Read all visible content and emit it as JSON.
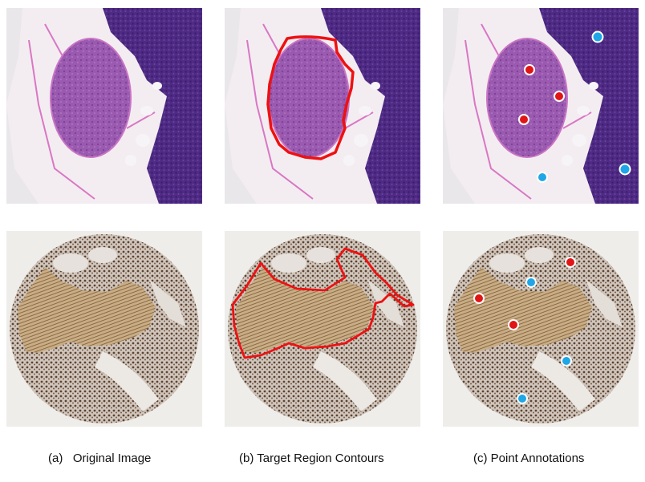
{
  "captions": {
    "a_prefix": "(a)",
    "a_label": "Original Image",
    "b": "(b) Target Region Contours",
    "c": "(c) Point Annotations"
  },
  "annotation_colors": {
    "contour": "#ee1111",
    "positive_point": "#e01616",
    "negative_point": "#1fa6e6",
    "point_outline": "#ffffff"
  },
  "tissue_colors": {
    "he_background": "#e9e7ea",
    "he_lymph": "#4f2b85",
    "he_follicle": "#9a5ab0",
    "he_fat": "#f3edf2",
    "he_septa": "#d977c4",
    "ihc_background": "#efedea",
    "ihc_core": "#d8d3cc",
    "ihc_fiber": "#a8875e",
    "ihc_nuclei": "#5e4230"
  },
  "rows": [
    {
      "name": "H&E lymph node",
      "panels": [
        "original",
        "contour",
        "points"
      ]
    },
    {
      "name": "IHC tissue microarray core",
      "panels": [
        "original",
        "contour",
        "points"
      ]
    }
  ]
}
